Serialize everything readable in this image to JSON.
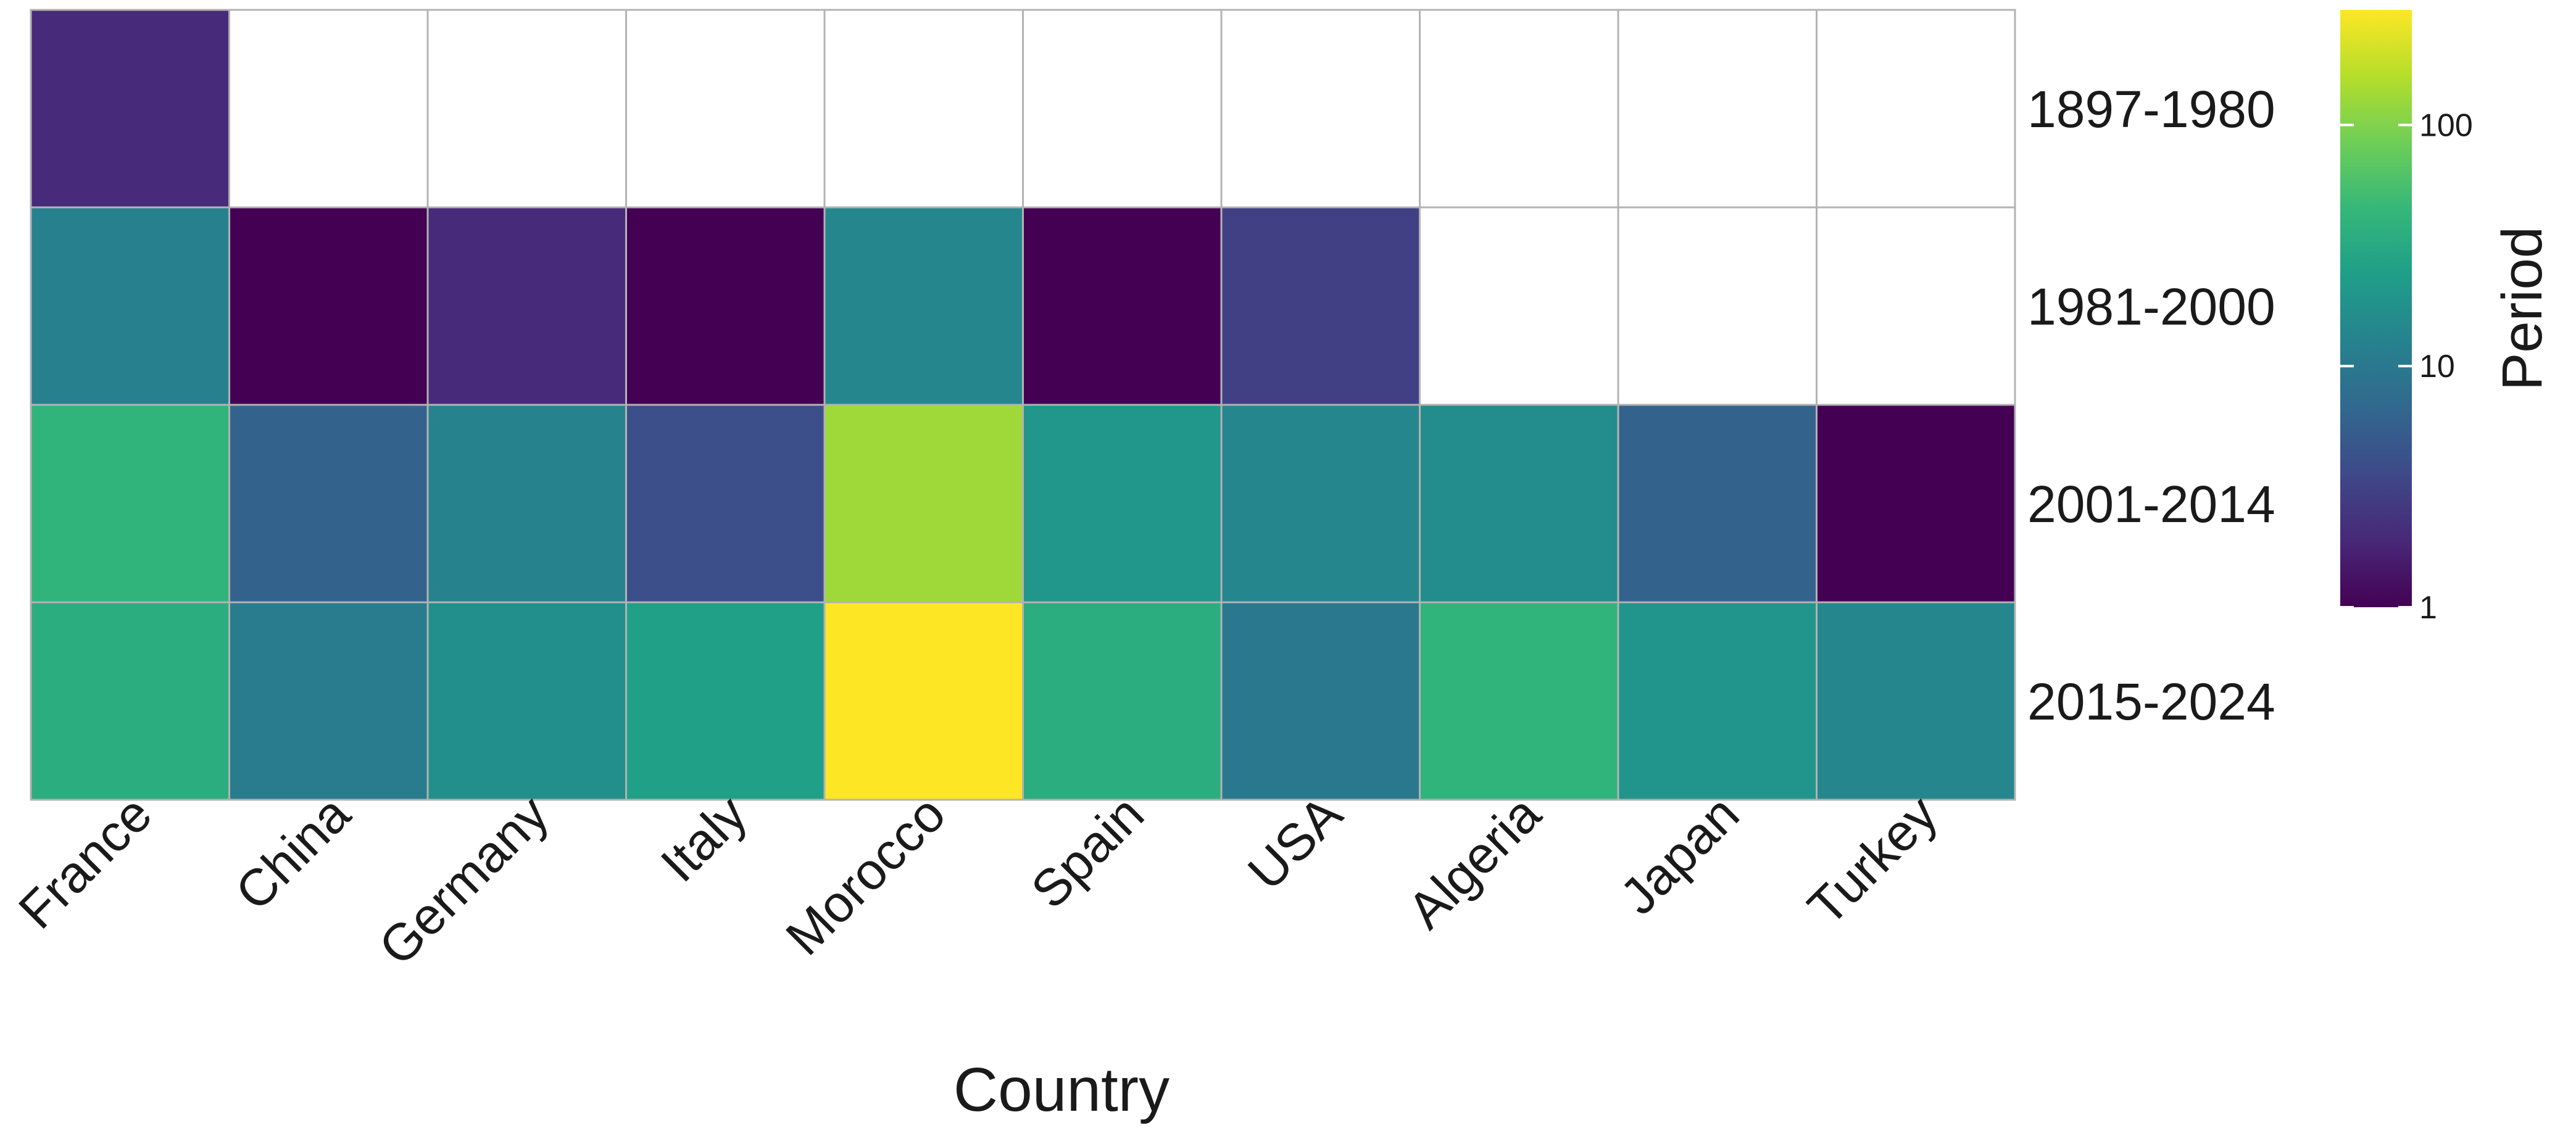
{
  "chart_data": {
    "type": "heatmap",
    "title": "",
    "xlabel": "Country",
    "ylabel": "",
    "x_categories": [
      "France",
      "China",
      "Germany",
      "Italy",
      "Morocco",
      "Spain",
      "USA",
      "Algeria",
      "Japan",
      "Turkey"
    ],
    "y_categories": [
      "1897-1980",
      "1981-2000",
      "2001-2014",
      "2015-2024"
    ],
    "values": [
      [
        2,
        null,
        null,
        null,
        null,
        null,
        null,
        null,
        null,
        null
      ],
      [
        12,
        1,
        2,
        1,
        14,
        1,
        3,
        null,
        null,
        null
      ],
      [
        40,
        6,
        13,
        4,
        130,
        20,
        14,
        16,
        6,
        1
      ],
      [
        35,
        11,
        17,
        25,
        300,
        35,
        10,
        40,
        19,
        14
      ]
    ],
    "missing_color": "#ffffff",
    "grid_color": "#b3b3b3",
    "colorscale": {
      "name": "viridis",
      "scale": "log10",
      "range": [
        1,
        300
      ],
      "stops": [
        "#440154",
        "#482878",
        "#3e4989",
        "#31688e",
        "#26828e",
        "#1f9e89",
        "#35b779",
        "#6ece58",
        "#b5de2b",
        "#fde725"
      ]
    },
    "legend": {
      "title": "Period",
      "placement": "right",
      "ticks": [
        {
          "value": 1,
          "label": "1"
        },
        {
          "value": 10,
          "label": "10"
        },
        {
          "value": 100,
          "label": "100"
        }
      ]
    }
  }
}
